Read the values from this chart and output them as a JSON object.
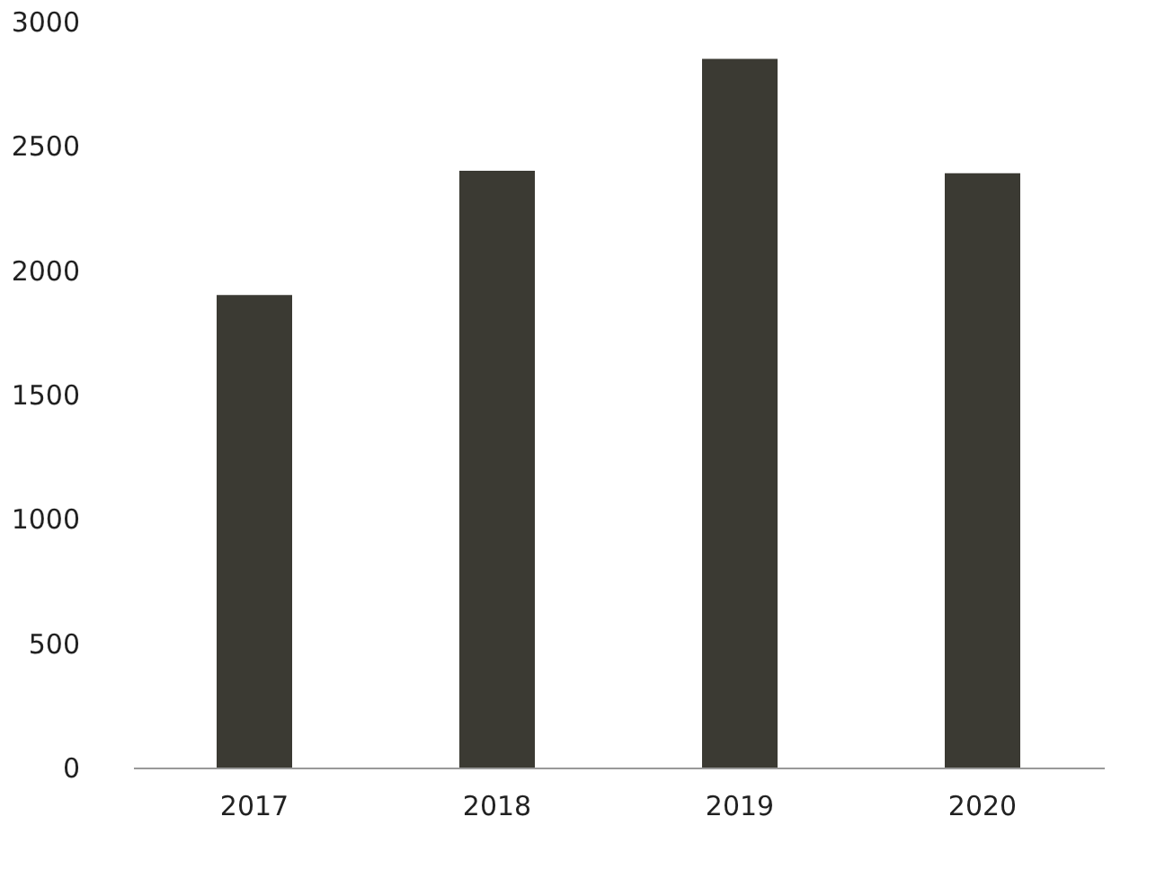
{
  "chart_data": {
    "type": "bar",
    "categories": [
      "2017",
      "2018",
      "2019",
      "2020"
    ],
    "values": [
      1900,
      2400,
      2850,
      2390
    ],
    "color": "#3b3a33",
    "ylim": [
      0,
      3000
    ],
    "yticks": [
      0,
      500,
      1000,
      1500,
      2000,
      2500,
      3000
    ],
    "grid": false
  }
}
